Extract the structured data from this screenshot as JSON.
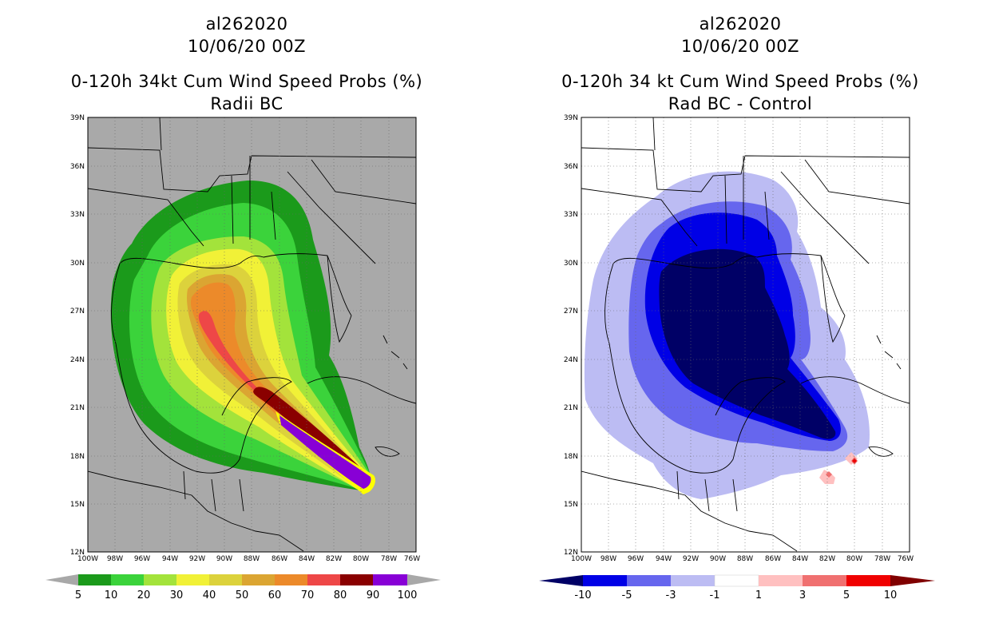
{
  "left": {
    "title_id": "al262020",
    "title_date": "10/06/20 00Z",
    "title_main": "0-120h 34kt Cum Wind Speed Probs (%)",
    "title_sub": "Radii BC",
    "lat_labels": [
      "39N",
      "36N",
      "33N",
      "30N",
      "27N",
      "24N",
      "21N",
      "18N",
      "15N",
      "12N"
    ],
    "lon_labels": [
      "100W",
      "98W",
      "96W",
      "94W",
      "92W",
      "90W",
      "88W",
      "86W",
      "84W",
      "82W",
      "80W",
      "78W",
      "76W"
    ],
    "colorbar": {
      "labels": [
        "5",
        "10",
        "20",
        "30",
        "40",
        "50",
        "60",
        "70",
        "80",
        "90",
        "100"
      ],
      "colors": [
        "#1b9a1b",
        "#3bd33b",
        "#a3e33b",
        "#f1f137",
        "#dcd23c",
        "#dba532",
        "#ec8a2a",
        "#ee4747",
        "#8a0000",
        "#8800d6"
      ],
      "end_color": "#a8a8a8"
    },
    "background": "#a9a9a9"
  },
  "right": {
    "title_id": "al262020",
    "title_date": "10/06/20 00Z",
    "title_main": "0-120h 34 kt Cum Wind Speed Probs (%)",
    "title_sub": "Rad BC - Control",
    "lat_labels": [
      "39N",
      "36N",
      "33N",
      "30N",
      "27N",
      "24N",
      "21N",
      "18N",
      "15N",
      "12N"
    ],
    "lon_labels": [
      "100W",
      "98W",
      "96W",
      "94W",
      "92W",
      "90W",
      "88W",
      "86W",
      "84W",
      "82W",
      "80W",
      "78W",
      "76W"
    ],
    "colorbar": {
      "labels": [
        "-10",
        "-5",
        "-3",
        "-1",
        "1",
        "3",
        "5",
        "10"
      ],
      "colors": [
        "#0000e6",
        "#6666ee",
        "#bcbcf3",
        "#ffffff",
        "#ffc0c0",
        "#f07070",
        "#f00000"
      ],
      "left_end": "#000066",
      "right_end": "#800000"
    },
    "background": "#ffffff"
  }
}
